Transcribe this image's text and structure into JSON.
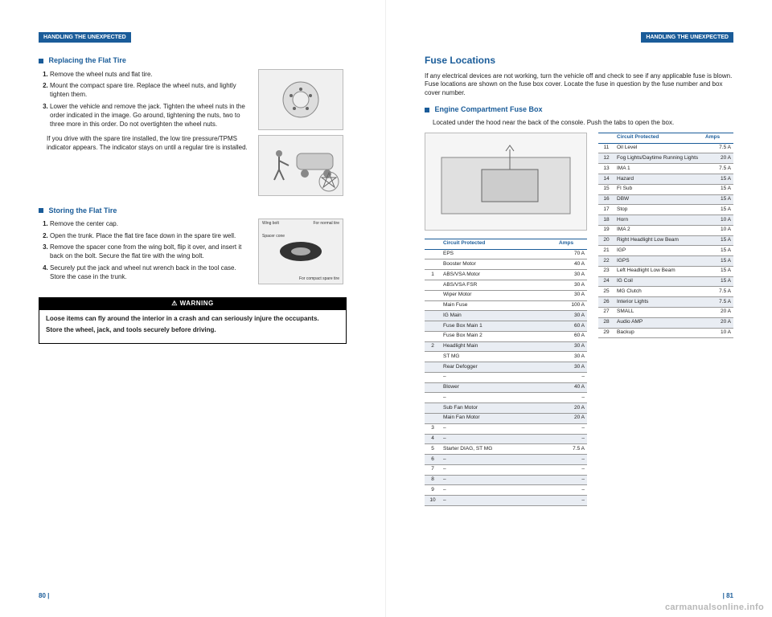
{
  "leftPage": {
    "headerBar": "HANDLING THE UNEXPECTED",
    "sec1": {
      "title": "Replacing the Flat Tire",
      "steps": [
        "Remove the wheel nuts and flat tire.",
        "Mount the compact spare tire. Replace the wheel nuts, and lightly tighten them.",
        "Lower the vehicle and remove the jack. Tighten the wheel nuts in the order indicated in the image. Go around, tightening the nuts, two to three more in this order. Do not overtighten the wheel nuts."
      ],
      "para": "If you drive with the spare tire installed, the low tire pressure/TPMS indicator appears. The indicator stays on until a regular tire is installed."
    },
    "sec2": {
      "title": "Storing the Flat Tire",
      "steps": [
        "Remove the center cap.",
        "Open the trunk. Place the flat tire face down in the spare tire well.",
        "Remove the spacer cone from the wing bolt, flip it over, and insert it back on the bolt. Secure the flat tire with the wing bolt.",
        "Securely put the jack and wheel nut wrench back in the tool case. Store the case in the trunk."
      ],
      "imgLabels": {
        "wing": "Wing bolt",
        "cone": "Spacer cone",
        "normal": "For normal tire",
        "compact": "For compact spare tire"
      }
    },
    "warning": {
      "title": "WARNING",
      "p1": "Loose items can fly around the interior in a crash and can seriously injure the occupants.",
      "p2": "Store the wheel, jack, and tools securely before driving."
    },
    "pageNum": "80 |"
  },
  "rightPage": {
    "headerBar": "HANDLING THE UNEXPECTED",
    "h1": "Fuse Locations",
    "intro": "If any electrical devices are not working, turn the vehicle off and check to see if any applicable fuse is blown. Fuse locations are shown on the fuse box cover. Locate the fuse in question by the fuse number and box cover number.",
    "sec": {
      "title": "Engine Compartment Fuse Box",
      "note": "Located under the hood near the back of the console. Push the tabs to open the box."
    },
    "table1": {
      "headers": [
        "",
        "Circuit Protected",
        "Amps"
      ],
      "rows": [
        {
          "n": "",
          "c": "EPS",
          "a": "70 A",
          "group": 1
        },
        {
          "n": "",
          "c": "Booster Motor",
          "a": "40 A",
          "group": 1
        },
        {
          "n": "1",
          "c": "ABS/VSA Motor",
          "a": "30 A",
          "group": 1
        },
        {
          "n": "",
          "c": "ABS/VSA FSR",
          "a": "30 A",
          "group": 1
        },
        {
          "n": "",
          "c": "Wiper Motor",
          "a": "30 A",
          "group": 1
        },
        {
          "n": "",
          "c": "Main Fuse",
          "a": "100 A",
          "group": 1
        },
        {
          "n": "",
          "c": "IG Main",
          "a": "30 A",
          "shade": true
        },
        {
          "n": "",
          "c": "Fuse Box Main 1",
          "a": "60 A",
          "shade": true
        },
        {
          "n": "",
          "c": "Fuse Box Main 2",
          "a": "60 A"
        },
        {
          "n": "2",
          "c": "Headlight Main",
          "a": "30 A",
          "shade": true
        },
        {
          "n": "",
          "c": "ST MG",
          "a": "30 A"
        },
        {
          "n": "",
          "c": "Rear Defogger",
          "a": "30 A",
          "shade": true
        },
        {
          "n": "",
          "c": "–",
          "a": "–"
        },
        {
          "n": "",
          "c": "Blower",
          "a": "40 A",
          "shade": true
        },
        {
          "n": "",
          "c": "–",
          "a": "–"
        },
        {
          "n": "",
          "c": "Sub Fan Motor",
          "a": "20 A",
          "shade": true
        },
        {
          "n": "",
          "c": "Main Fan Motor",
          "a": "20 A",
          "shade": true
        },
        {
          "n": "3",
          "c": "–",
          "a": "–"
        },
        {
          "n": "4",
          "c": "–",
          "a": "–",
          "shade": true
        },
        {
          "n": "5",
          "c": "Starter DIAG, ST MG",
          "a": "7.5 A"
        },
        {
          "n": "6",
          "c": "–",
          "a": "–",
          "shade": true
        },
        {
          "n": "7",
          "c": "–",
          "a": "–"
        },
        {
          "n": "8",
          "c": "–",
          "a": "–",
          "shade": true
        },
        {
          "n": "9",
          "c": "–",
          "a": "–"
        },
        {
          "n": "10",
          "c": "–",
          "a": "–",
          "shade": true
        }
      ]
    },
    "table2": {
      "headers": [
        "",
        "Circuit Protected",
        "Amps"
      ],
      "rows": [
        {
          "n": "11",
          "c": "Oil Level",
          "a": "7.5 A"
        },
        {
          "n": "12",
          "c": "Fog Lights/Daytime Running Lights",
          "a": "20 A",
          "shade": true
        },
        {
          "n": "13",
          "c": "IMA 1",
          "a": "7.5 A"
        },
        {
          "n": "14",
          "c": "Hazard",
          "a": "15 A",
          "shade": true
        },
        {
          "n": "15",
          "c": "FI Sub",
          "a": "15 A"
        },
        {
          "n": "16",
          "c": "DBW",
          "a": "15 A",
          "shade": true
        },
        {
          "n": "17",
          "c": "Stop",
          "a": "15 A"
        },
        {
          "n": "18",
          "c": "Horn",
          "a": "10 A",
          "shade": true
        },
        {
          "n": "19",
          "c": "IMA 2",
          "a": "10 A"
        },
        {
          "n": "20",
          "c": "Right Headlight Low Beam",
          "a": "15 A",
          "shade": true
        },
        {
          "n": "21",
          "c": "IGP",
          "a": "15 A"
        },
        {
          "n": "22",
          "c": "IGPS",
          "a": "15 A",
          "shade": true
        },
        {
          "n": "23",
          "c": "Left Headlight Low Beam",
          "a": "15 A"
        },
        {
          "n": "24",
          "c": "IG Coil",
          "a": "15 A",
          "shade": true
        },
        {
          "n": "25",
          "c": "MG Clutch",
          "a": "7.5 A"
        },
        {
          "n": "26",
          "c": "Interior Lights",
          "a": "7.5 A",
          "shade": true
        },
        {
          "n": "27",
          "c": "SMALL",
          "a": "20 A"
        },
        {
          "n": "28",
          "c": "Audio AMP",
          "a": "20 A",
          "shade": true
        },
        {
          "n": "29",
          "c": "Backup",
          "a": "10 A"
        }
      ]
    },
    "pageNum": "| 81"
  },
  "watermark": "carmanualsonline.info"
}
